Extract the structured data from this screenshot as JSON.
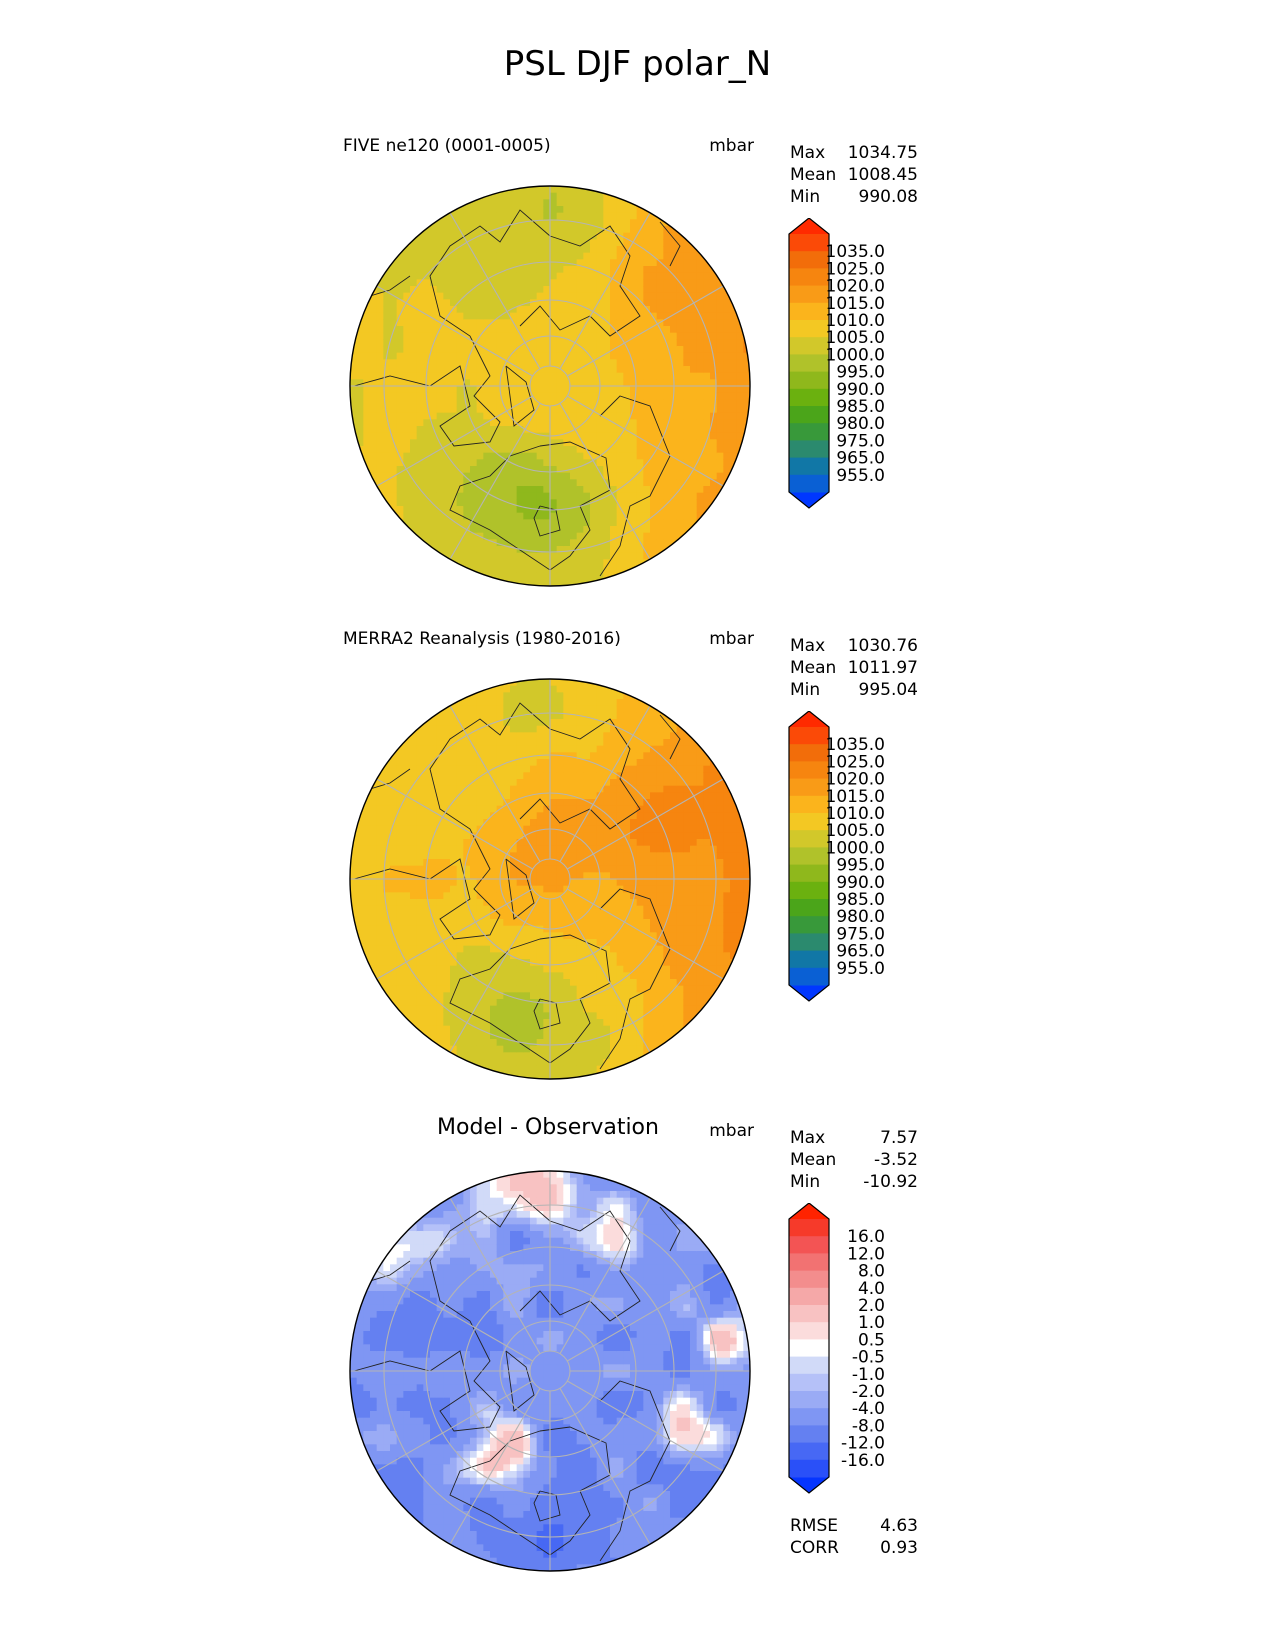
{
  "figure": {
    "title": "PSL DJF polar_N"
  },
  "colors": {
    "field_levels": [
      "#0037ff",
      "#0a60d4",
      "#1177a6",
      "#2b8a6e",
      "#38993a",
      "#4ba51a",
      "#6bb10f",
      "#8fb81c",
      "#b0c22a",
      "#d2c82a",
      "#f3c823",
      "#fbb41c",
      "#f99b17",
      "#f6850f",
      "#f26d0a",
      "#fb4a07",
      "#ff2a00"
    ],
    "diff_levels": [
      "#0535ff",
      "#2a50f8",
      "#4768f4",
      "#6480f1",
      "#7f96f3",
      "#9aabf5",
      "#b5c1f8",
      "#d1daf8",
      "#ffffff",
      "#fbdcdc",
      "#f8c2c2",
      "#f5a8a8",
      "#f38d8d",
      "#f27272",
      "#f35454",
      "#f63a2a",
      "#ff2300"
    ],
    "grid": "#b4b4b4",
    "coast": "#222222"
  },
  "panels": [
    {
      "id": "test",
      "title_left": "FIVE ne120 (0001-0005)",
      "units": "mbar",
      "stats": {
        "max_label": "Max",
        "max": "1034.75",
        "mean_label": "Mean",
        "mean": "1008.45",
        "min_label": "Min",
        "min": "990.08"
      },
      "colorbar": [
        "1035.0",
        "1025.0",
        "1020.0",
        "1015.0",
        "1010.0",
        "1005.0",
        "1000.0",
        "995.0",
        "990.0",
        "985.0",
        "980.0",
        "975.0",
        "965.0",
        "955.0"
      ]
    },
    {
      "id": "ref",
      "title_left": "MERRA2 Reanalysis (1980-2016)",
      "units": "mbar",
      "stats": {
        "max_label": "Max",
        "max": "1030.76",
        "mean_label": "Mean",
        "mean": "1011.97",
        "min_label": "Min",
        "min": "995.04"
      },
      "colorbar": [
        "1035.0",
        "1025.0",
        "1020.0",
        "1015.0",
        "1010.0",
        "1005.0",
        "1000.0",
        "995.0",
        "990.0",
        "985.0",
        "980.0",
        "975.0",
        "965.0",
        "955.0"
      ]
    },
    {
      "id": "diff",
      "title_center": "Model - Observation",
      "units": "mbar",
      "stats": {
        "max_label": "Max",
        "max": "7.57",
        "mean_label": "Mean",
        "mean": "-3.52",
        "min_label": "Min",
        "min": "-10.92"
      },
      "colorbar": [
        "16.0",
        "12.0",
        "8.0",
        "4.0",
        "2.0",
        "1.0",
        "0.5",
        "-0.5",
        "-1.0",
        "-2.0",
        "-4.0",
        "-8.0",
        "-12.0",
        "-16.0"
      ],
      "metrics": {
        "rmse_label": "RMSE",
        "rmse": "4.63",
        "corr_label": "CORR",
        "corr": "0.93"
      }
    }
  ],
  "chart_data": [
    {
      "type": "heatmap",
      "projection": "north polar stereographic",
      "title": "FIVE ne120 (0001-0005)",
      "variable": "PSL",
      "units": "mbar",
      "max": 1034.75,
      "mean": 1008.45,
      "min": 990.08,
      "colorbar_ticks": [
        1035.0,
        1025.0,
        1020.0,
        1015.0,
        1010.0,
        1005.0,
        1000.0,
        995.0,
        990.0,
        985.0,
        980.0,
        975.0,
        965.0,
        955.0
      ]
    },
    {
      "type": "heatmap",
      "projection": "north polar stereographic",
      "title": "MERRA2 Reanalysis (1980-2016)",
      "variable": "PSL",
      "units": "mbar",
      "max": 1030.76,
      "mean": 1011.97,
      "min": 995.04,
      "colorbar_ticks": [
        1035.0,
        1025.0,
        1020.0,
        1015.0,
        1010.0,
        1005.0,
        1000.0,
        995.0,
        990.0,
        985.0,
        980.0,
        975.0,
        965.0,
        955.0
      ]
    },
    {
      "type": "heatmap",
      "projection": "north polar stereographic",
      "title": "Model - Observation",
      "variable": "PSL",
      "units": "mbar",
      "max": 7.57,
      "mean": -3.52,
      "min": -10.92,
      "rmse": 4.63,
      "corr": 0.93,
      "colorbar_ticks": [
        16.0,
        12.0,
        8.0,
        4.0,
        2.0,
        1.0,
        0.5,
        -0.5,
        -1.0,
        -2.0,
        -4.0,
        -8.0,
        -12.0,
        -16.0
      ]
    }
  ]
}
